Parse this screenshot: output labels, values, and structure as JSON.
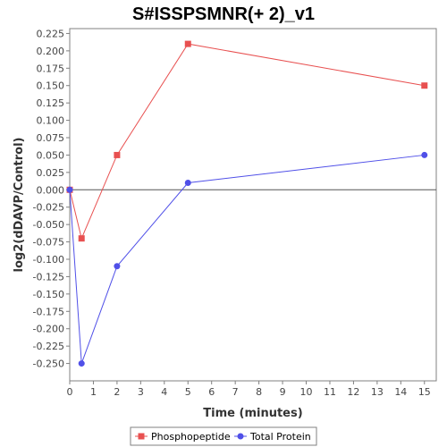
{
  "chart_data": {
    "type": "line",
    "title": "S#ISSPSMNR(+ 2)_v1",
    "xlabel": "Time (minutes)",
    "ylabel": "log2(dDAVP/Control)",
    "xlim": [
      0,
      15.5
    ],
    "ylim": [
      -0.275,
      0.232
    ],
    "xticks": [
      0,
      1,
      2,
      3,
      4,
      5,
      6,
      7,
      8,
      9,
      10,
      11,
      12,
      13,
      14,
      15
    ],
    "yticks": [
      0.225,
      0.2,
      0.175,
      0.15,
      0.125,
      0.1,
      0.075,
      0.05,
      0.025,
      0.0,
      -0.025,
      -0.05,
      -0.075,
      -0.1,
      -0.125,
      -0.15,
      -0.175,
      -0.2,
      -0.225,
      -0.25
    ],
    "ytick_labels": [
      "0.225",
      "0.200",
      "0.175",
      "0.150",
      "0.125",
      "0.100",
      "0.075",
      "0.050",
      "0.025",
      "0.000",
      "-0.025",
      "-0.050",
      "-0.075",
      "-0.100",
      "-0.125",
      "-0.150",
      "-0.175",
      "-0.200",
      "-0.225",
      "-0.250"
    ],
    "grid": false,
    "zero_line": true,
    "legend_position": "bottom",
    "series": [
      {
        "name": "Phosphopeptide",
        "color": "#e85050",
        "marker": "square",
        "x": [
          0,
          0.5,
          2,
          5,
          15
        ],
        "y": [
          0.0,
          -0.07,
          0.05,
          0.21,
          0.15
        ]
      },
      {
        "name": "Total Protein",
        "color": "#5050e8",
        "marker": "circle",
        "x": [
          0,
          0.5,
          2,
          5,
          15
        ],
        "y": [
          0.0,
          -0.25,
          -0.11,
          0.01,
          0.05
        ]
      }
    ]
  }
}
